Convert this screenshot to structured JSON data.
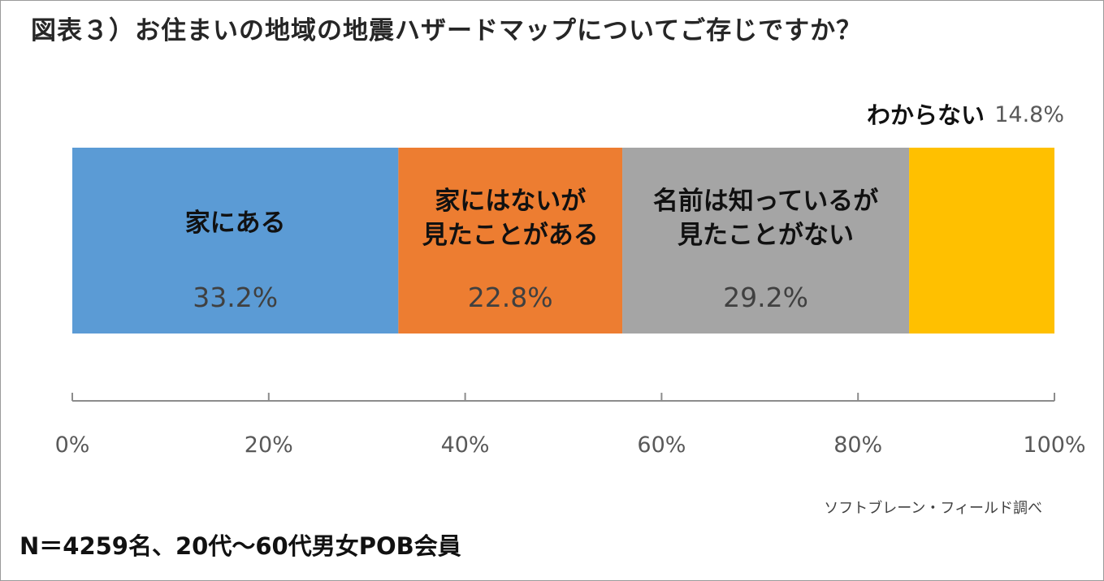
{
  "title": "図表３）お住まいの地域の地震ハザードマップについてご存じですか？",
  "source": "ソフトブレーン・フィールド調べ",
  "note": "N＝4259名、20代～60代男女POB会員",
  "chart_data": {
    "type": "bar",
    "orientation": "horizontal-stacked-100",
    "xlim": [
      0,
      100
    ],
    "ticks": [
      "0%",
      "20%",
      "40%",
      "60%",
      "80%",
      "100%"
    ],
    "tick_values": [
      0,
      20,
      40,
      60,
      80,
      100
    ],
    "grid": false,
    "series": [
      {
        "name": "家にある",
        "label_lines": [
          "家にある"
        ],
        "value": 33.2,
        "value_label": "33.2%",
        "color": "#5b9bd5",
        "label_position": "inside"
      },
      {
        "name": "家にはないが見たことがある",
        "label_lines": [
          "家にはないが",
          "見たことがある"
        ],
        "value": 22.8,
        "value_label": "22.8%",
        "color": "#ed7d31",
        "label_position": "inside"
      },
      {
        "name": "名前は知っているが見たことがない",
        "label_lines": [
          "名前は知っているが",
          "見たことがない"
        ],
        "value": 29.2,
        "value_label": "29.2%",
        "color": "#a5a5a5",
        "label_position": "inside"
      },
      {
        "name": "わからない",
        "label_lines": [
          "わからない"
        ],
        "value": 14.8,
        "value_label": "14.8%",
        "color": "#ffc000",
        "label_position": "outside-top-right"
      }
    ]
  }
}
